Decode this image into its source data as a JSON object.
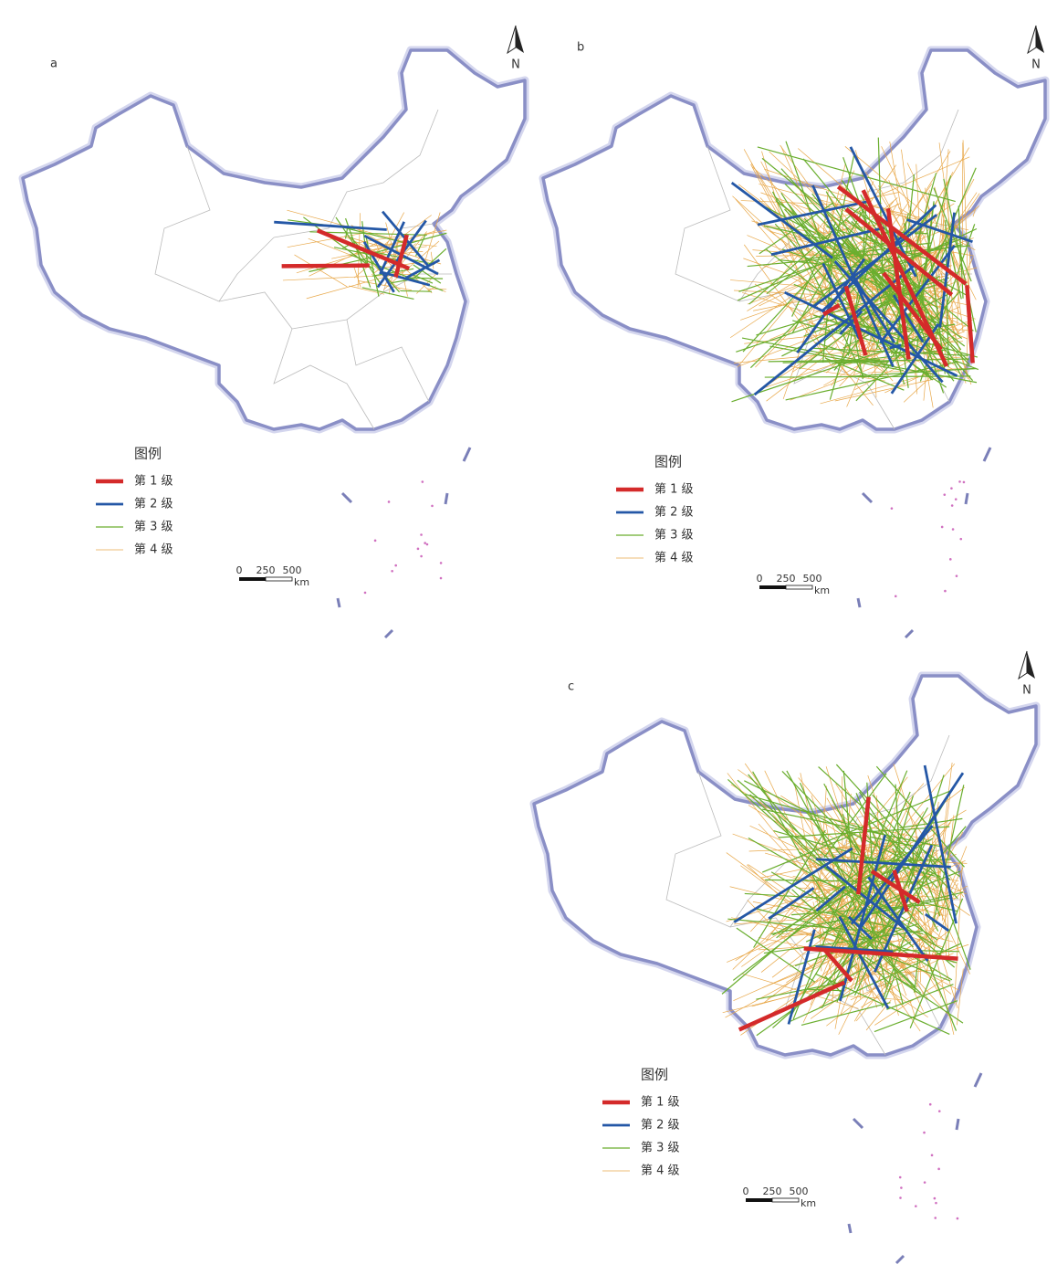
{
  "panels": [
    {
      "label": "a",
      "north": "N",
      "legend": {
        "title": "图例",
        "items": [
          "第 1 级",
          "第 2 级",
          "第 3 级",
          "第 4 级"
        ]
      },
      "scale": {
        "ticks": [
          "0",
          "250",
          "500"
        ],
        "unit": "km"
      }
    },
    {
      "label": "b",
      "north": "N",
      "legend": {
        "title": "图例",
        "items": [
          "第 1 级",
          "第 2 级",
          "第 3 级",
          "第 4 级"
        ]
      },
      "scale": {
        "ticks": [
          "0",
          "250",
          "500"
        ],
        "unit": "km"
      }
    },
    {
      "label": "c",
      "north": "N",
      "legend": {
        "title": "图例",
        "items": [
          "第 1 级",
          "第 2 级",
          "第 3 级",
          "第 4 级"
        ]
      },
      "scale": {
        "ticks": [
          "0",
          "250",
          "500"
        ],
        "unit": "km"
      }
    }
  ]
}
